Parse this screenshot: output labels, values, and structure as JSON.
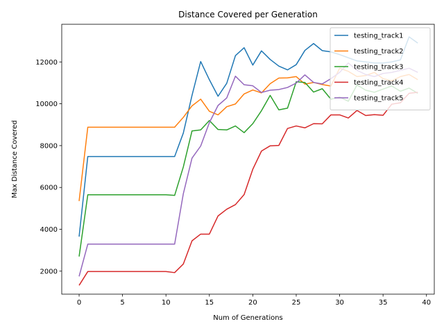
{
  "chart_data": {
    "type": "line",
    "title": "Distance Covered per Generation",
    "xlabel": "Num of Generations",
    "ylabel": "Max Distance Covered",
    "xlim": [
      -2,
      40.9
    ],
    "ylim": [
      900,
      13800
    ],
    "xticks": [
      0,
      5,
      10,
      15,
      20,
      25,
      30,
      35,
      40
    ],
    "yticks": [
      2000,
      4000,
      6000,
      8000,
      10000,
      12000
    ],
    "grid": false,
    "legend_position": "top-right",
    "x": [
      0,
      1,
      2,
      3,
      4,
      5,
      6,
      7,
      8,
      9,
      10,
      11,
      12,
      13,
      14,
      15,
      16,
      17,
      18,
      19,
      20,
      21,
      22,
      23,
      24,
      25,
      26,
      27,
      28,
      29,
      30,
      31,
      32,
      33,
      34,
      35,
      36,
      37,
      38,
      39
    ],
    "series": [
      {
        "name": "testing_track1",
        "color": "#1f77b4",
        "values": [
          3650,
          7480,
          7480,
          7480,
          7480,
          7480,
          7480,
          7480,
          7480,
          7480,
          7480,
          7480,
          8600,
          10400,
          12020,
          11150,
          10360,
          10980,
          12300,
          12680,
          11850,
          12530,
          12120,
          11800,
          11620,
          11870,
          12550,
          12880,
          12540,
          12480,
          12350,
          12200,
          12050,
          12000,
          11950,
          11950,
          12000,
          12100,
          13200,
          12900
        ]
      },
      {
        "name": "testing_track2",
        "color": "#ff7f0e",
        "values": [
          5350,
          8880,
          8880,
          8880,
          8880,
          8880,
          8880,
          8880,
          8880,
          8880,
          8880,
          8880,
          9350,
          9900,
          10220,
          9640,
          9470,
          9860,
          9990,
          10470,
          10660,
          10520,
          10960,
          11230,
          11240,
          11300,
          10940,
          11020,
          10920,
          10850,
          11700,
          11550,
          11300,
          11350,
          11500,
          11200,
          11100,
          11300,
          11400,
          11150
        ]
      },
      {
        "name": "testing_track3",
        "color": "#2ca02c",
        "values": [
          2700,
          5650,
          5650,
          5650,
          5650,
          5650,
          5650,
          5650,
          5650,
          5650,
          5650,
          5620,
          6980,
          8700,
          8750,
          9200,
          8770,
          8750,
          8940,
          8620,
          9050,
          9670,
          10400,
          9710,
          9790,
          11050,
          11020,
          10560,
          10720,
          10220,
          10320,
          10120,
          10900,
          10650,
          10550,
          10700,
          10850,
          10600,
          10750,
          10500
        ]
      },
      {
        "name": "testing_track4",
        "color": "#d62728",
        "values": [
          1320,
          1980,
          1980,
          1980,
          1980,
          1980,
          1980,
          1980,
          1980,
          1980,
          1980,
          1930,
          2340,
          3450,
          3770,
          3770,
          4640,
          4960,
          5180,
          5660,
          6870,
          7740,
          7990,
          8010,
          8820,
          8940,
          8850,
          9050,
          9040,
          9470,
          9470,
          9320,
          9680,
          9440,
          9480,
          9450,
          9980,
          10050,
          10500,
          10550
        ]
      },
      {
        "name": "testing_track5",
        "color": "#9467bd",
        "values": [
          1750,
          3290,
          3290,
          3290,
          3290,
          3290,
          3290,
          3290,
          3290,
          3290,
          3290,
          3290,
          5700,
          7400,
          7980,
          9100,
          9920,
          10280,
          11320,
          10910,
          10860,
          10540,
          10650,
          10680,
          10780,
          10990,
          11380,
          11020,
          10950,
          11200,
          11500,
          11950,
          11600,
          11400,
          11300,
          11450,
          11500,
          11600,
          11700,
          11500
        ]
      }
    ]
  }
}
